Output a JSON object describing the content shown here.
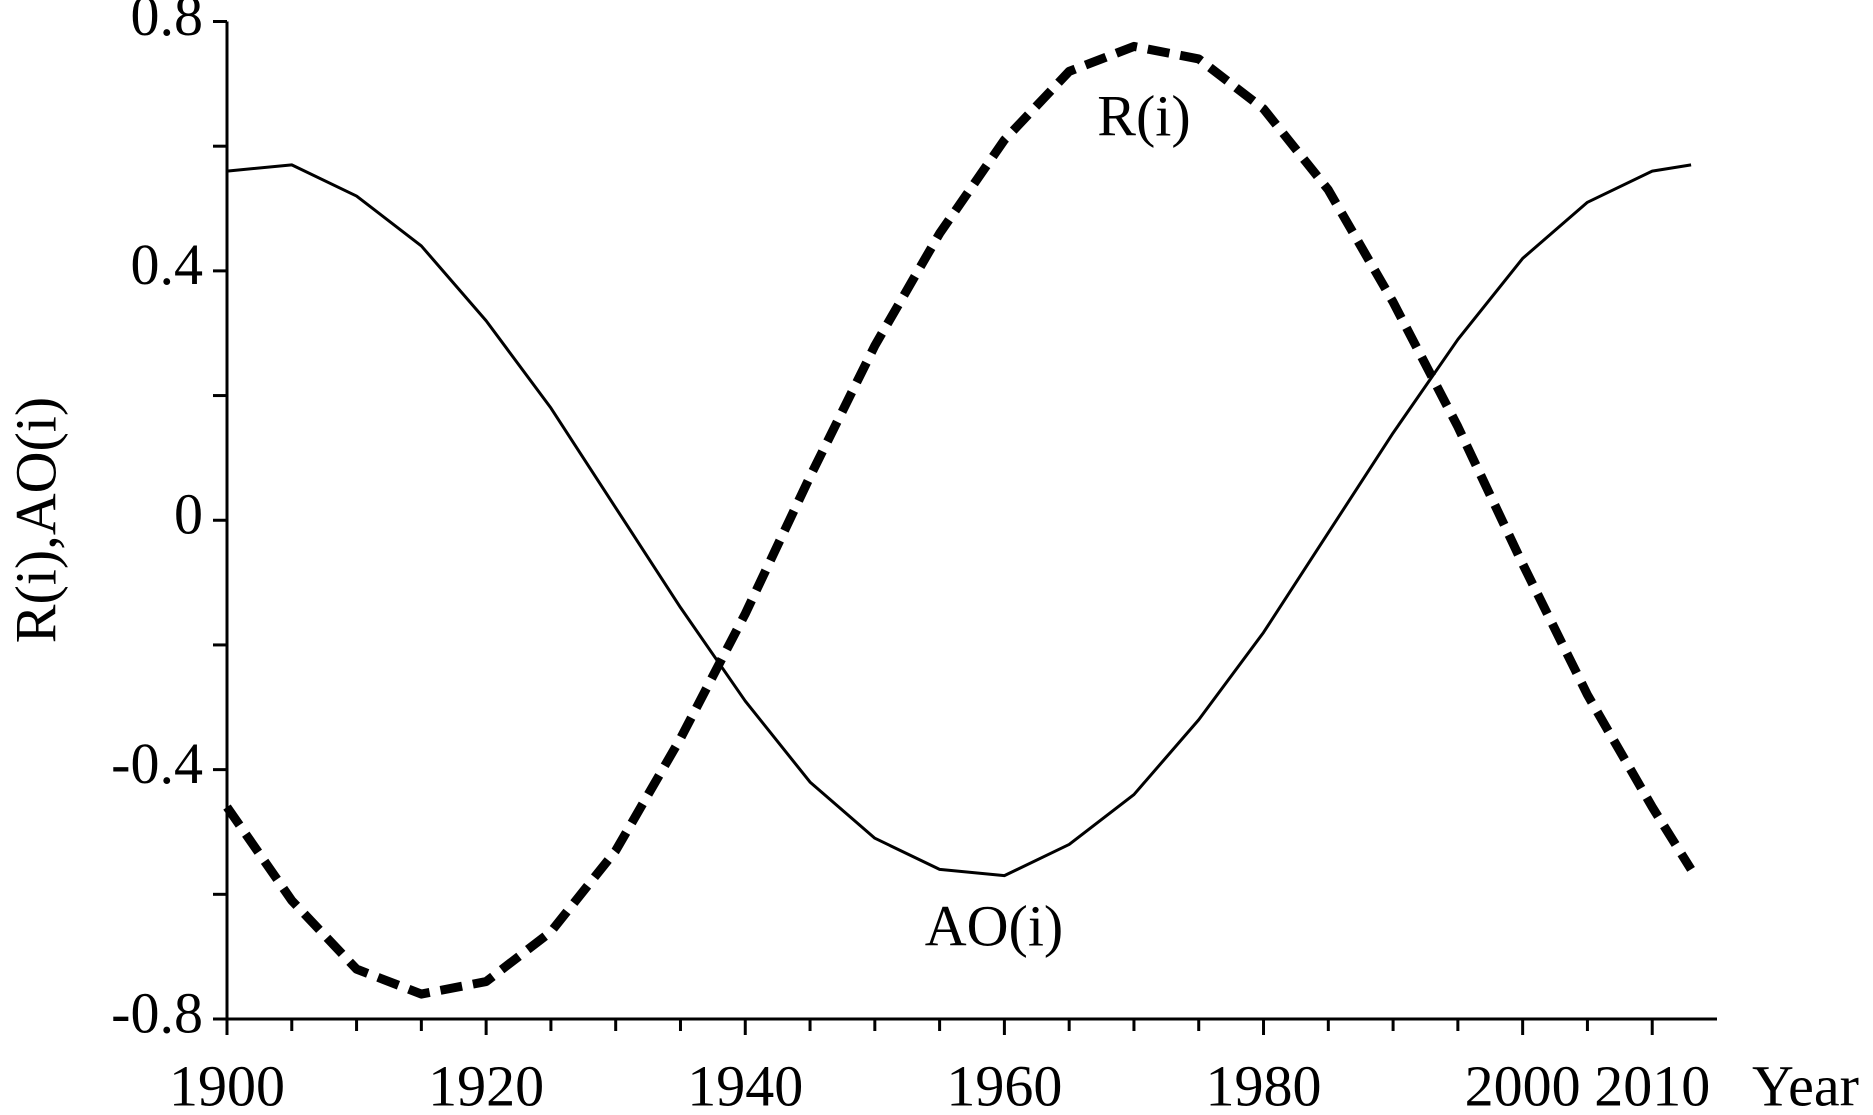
{
  "chart_data": {
    "type": "line",
    "y_label": "R(i),AO(i)",
    "x_label": "Year",
    "x": [
      1900,
      1905,
      1910,
      1915,
      1920,
      1925,
      1930,
      1935,
      1940,
      1945,
      1950,
      1955,
      1960,
      1965,
      1970,
      1975,
      1980,
      1985,
      1990,
      1995,
      2000,
      2005,
      2010,
      2013
    ],
    "series": [
      {
        "name": "R(i)",
        "color": "#000000",
        "dashed": true,
        "values": [
          -0.46,
          -0.61,
          -0.72,
          -0.76,
          -0.74,
          -0.66,
          -0.53,
          -0.35,
          -0.15,
          0.07,
          0.28,
          0.46,
          0.61,
          0.72,
          0.76,
          0.74,
          0.66,
          0.53,
          0.35,
          0.15,
          -0.07,
          -0.28,
          -0.46,
          -0.56
        ]
      },
      {
        "name": "AO(i)",
        "color": "#000000",
        "dashed": false,
        "values": [
          0.56,
          0.57,
          0.52,
          0.44,
          0.32,
          0.18,
          0.02,
          -0.14,
          -0.29,
          -0.42,
          -0.51,
          -0.56,
          -0.57,
          -0.52,
          -0.44,
          -0.32,
          -0.18,
          -0.02,
          0.14,
          0.29,
          0.42,
          0.51,
          0.56,
          0.57
        ]
      }
    ],
    "xlim": [
      1900,
      2015
    ],
    "ylim": [
      -0.8,
      0.8
    ],
    "xticks": [
      1900,
      1920,
      1940,
      1960,
      1980,
      2000,
      2010
    ],
    "xminorticks": [
      1905,
      1910,
      1915,
      1925,
      1930,
      1935,
      1945,
      1950,
      1955,
      1965,
      1970,
      1975,
      1985,
      1990,
      1995,
      2005
    ],
    "yticks": [
      -0.8,
      -0.4,
      0,
      0.4,
      0.8
    ],
    "yminorticks": [
      -0.6,
      -0.2,
      0.2,
      0.6
    ]
  }
}
